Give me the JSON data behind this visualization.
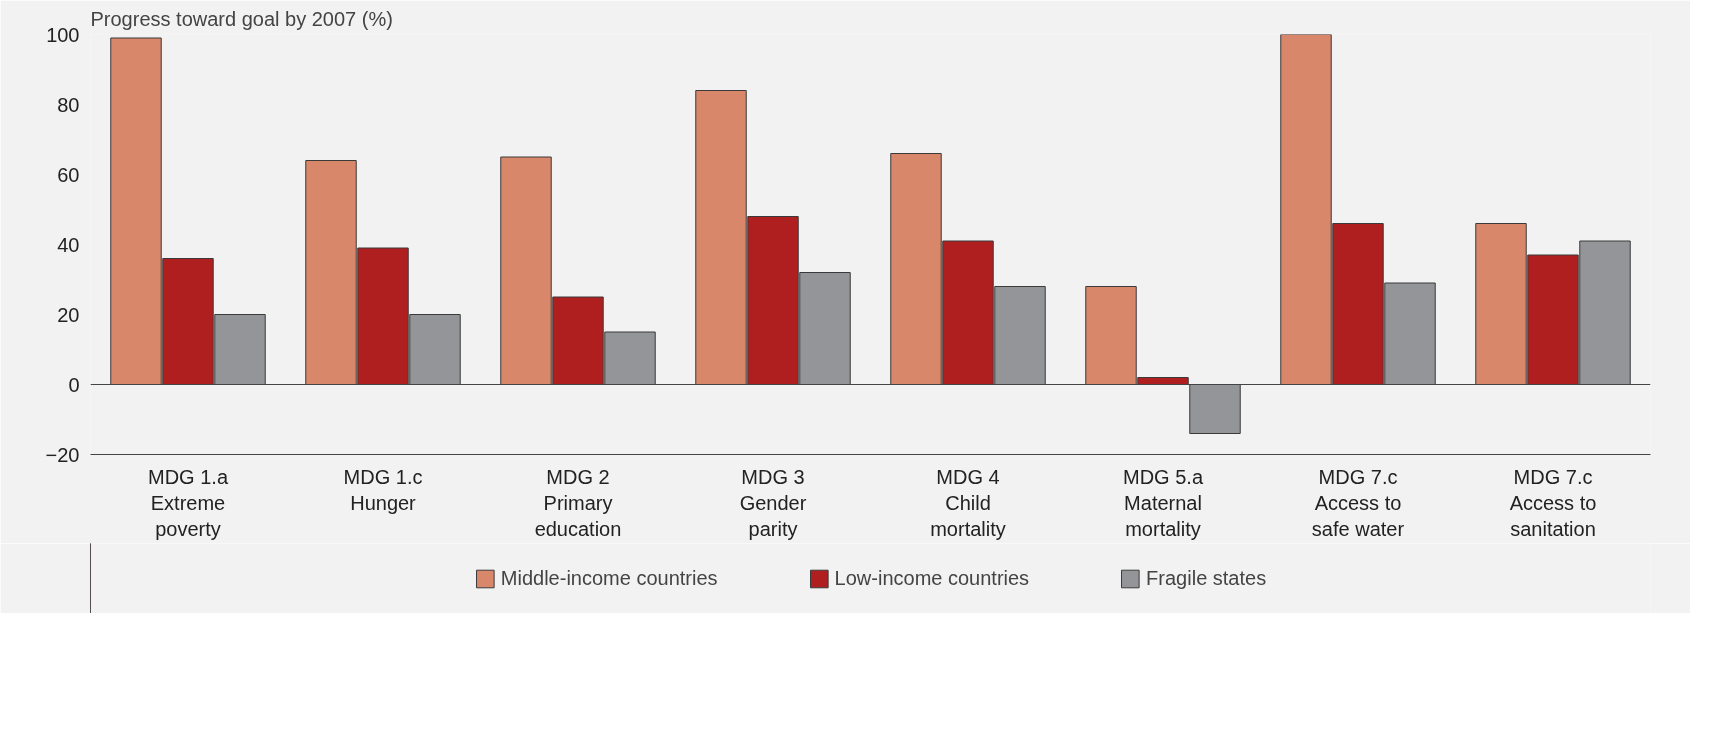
{
  "chart_data": {
    "type": "bar",
    "ylabel": "Progress toward goal by 2007 (%)",
    "categories": [
      "MDG 1.a\nExtreme\npoverty",
      "MDG 1.c\nHunger",
      "MDG 2\nPrimary\neducation",
      "MDG 3\nGender\nparity",
      "MDG 4\nChild\nmortality",
      "MDG 5.a\nMaternal\nmortality",
      "MDG 7.c\nAccess to\nsafe water",
      "MDG 7.c\nAccess to\nsanitation"
    ],
    "series": [
      {
        "name": "Middle-income countries",
        "color": "#d9876a",
        "values": [
          99,
          64,
          65,
          84,
          66,
          28,
          100,
          46
        ]
      },
      {
        "name": "Low-income countries",
        "color": "#b01f1f",
        "values": [
          36,
          39,
          25,
          48,
          41,
          2,
          46,
          37
        ]
      },
      {
        "name": "Fragile states",
        "color": "#939598",
        "values": [
          20,
          20,
          15,
          32,
          28,
          -14,
          29,
          41
        ]
      }
    ],
    "ylim": [
      -20,
      100
    ],
    "yticks": [
      -20,
      0,
      20,
      40,
      60,
      80,
      100
    ],
    "ref_lines": [
      {
        "axis": "y",
        "value": 0,
        "label": null
      }
    ],
    "grid": false,
    "legend": "bottom"
  }
}
